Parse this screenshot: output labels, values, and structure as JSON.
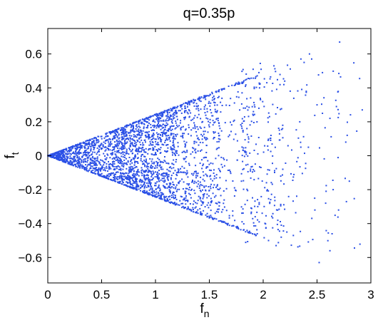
{
  "chart_data": {
    "type": "scatter",
    "title": "q=0.35p",
    "xlabel": {
      "main": "f",
      "sub": "n"
    },
    "ylabel": {
      "main": "f",
      "sub": "t"
    },
    "xlim": [
      0,
      3
    ],
    "ylim": [
      -0.75,
      0.75
    ],
    "xticks": [
      0,
      0.5,
      1,
      1.5,
      2,
      2.5,
      3
    ],
    "xtick_labels": [
      "0",
      "0.5",
      "1",
      "1.5",
      "2",
      "2.5",
      "3"
    ],
    "yticks": [
      -0.6,
      -0.4,
      -0.2,
      0,
      0.2,
      0.4,
      0.6
    ],
    "ytick_labels": [
      "−0.6",
      "−0.4",
      "−0.2",
      "0",
      "0.2",
      "0.4",
      "0.6"
    ],
    "grid": false,
    "marker_color": "#2b50e6",
    "envelope_slope": 0.245,
    "point_count": 2600,
    "series": [
      {
        "points": [
          [
            2.71,
            0.67
          ],
          [
            2.43,
            0.6
          ],
          [
            2.45,
            0.57
          ],
          [
            2.35,
            0.57
          ],
          [
            2.38,
            0.55
          ],
          [
            2.55,
            0.49
          ],
          [
            2.92,
            0.27
          ],
          [
            2.68,
            0.29
          ],
          [
            2.55,
            0.25
          ],
          [
            2.62,
            0.22
          ],
          [
            2.5,
            0.3
          ],
          [
            2.78,
            0.12
          ],
          [
            2.8,
            -0.15
          ],
          [
            2.65,
            -0.2
          ],
          [
            2.58,
            -0.28
          ],
          [
            2.7,
            -0.32
          ],
          [
            2.48,
            -0.32
          ],
          [
            2.64,
            -0.46
          ],
          [
            2.62,
            -0.56
          ],
          [
            2.52,
            -0.63
          ],
          [
            2.28,
            -0.47
          ],
          [
            2.12,
            -0.53
          ],
          [
            2.22,
            -0.45
          ],
          [
            2.05,
            -0.5
          ],
          [
            1.96,
            0.49
          ],
          [
            2.1,
            0.53
          ],
          [
            2.2,
            0.44
          ],
          [
            2.4,
            0.38
          ],
          [
            2.34,
            0.2
          ],
          [
            2.42,
            0.05
          ]
        ]
      }
    ]
  }
}
